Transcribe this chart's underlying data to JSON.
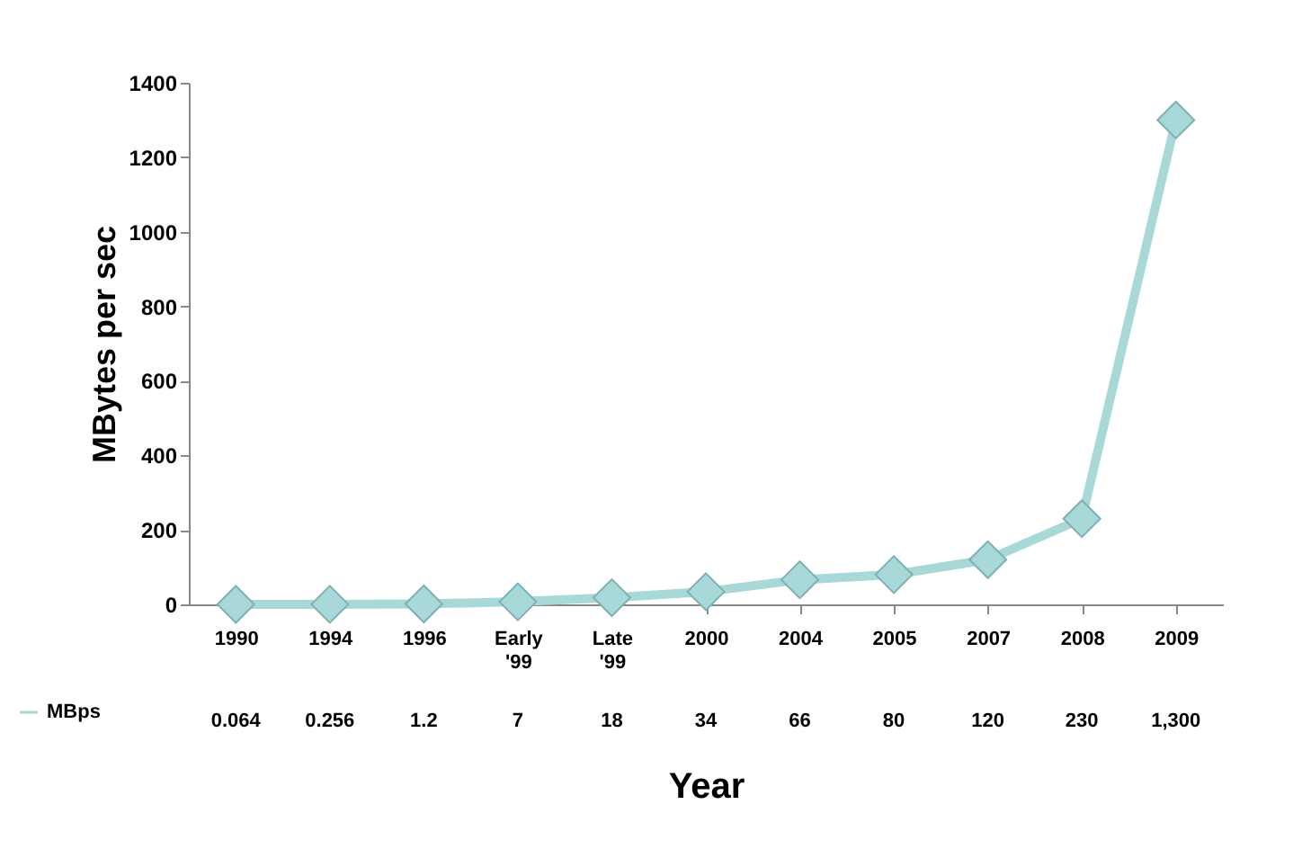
{
  "chart_data": {
    "type": "line",
    "xlabel": "Year",
    "ylabel": "MBytes per sec",
    "categories": [
      "1990",
      "1994",
      "1996",
      "Early '99",
      "Late '99",
      "2000",
      "2004",
      "2005",
      "2007",
      "2008",
      "2009"
    ],
    "series": [
      {
        "name": "MBps",
        "color": "#a8d8d8",
        "values": [
          0.064,
          0.256,
          1.2,
          7,
          18,
          34,
          66,
          80,
          120,
          230,
          1300
        ],
        "value_labels": [
          "0.064",
          "0.256",
          "1.2",
          "7",
          "18",
          "34",
          "66",
          "80",
          "120",
          "230",
          "1,300"
        ]
      }
    ],
    "ylim": [
      0,
      1400
    ],
    "yticks": [
      0,
      200,
      400,
      600,
      800,
      1000,
      1200,
      1400
    ],
    "marker": "diamond",
    "grid": false,
    "legend": "bottom left"
  }
}
